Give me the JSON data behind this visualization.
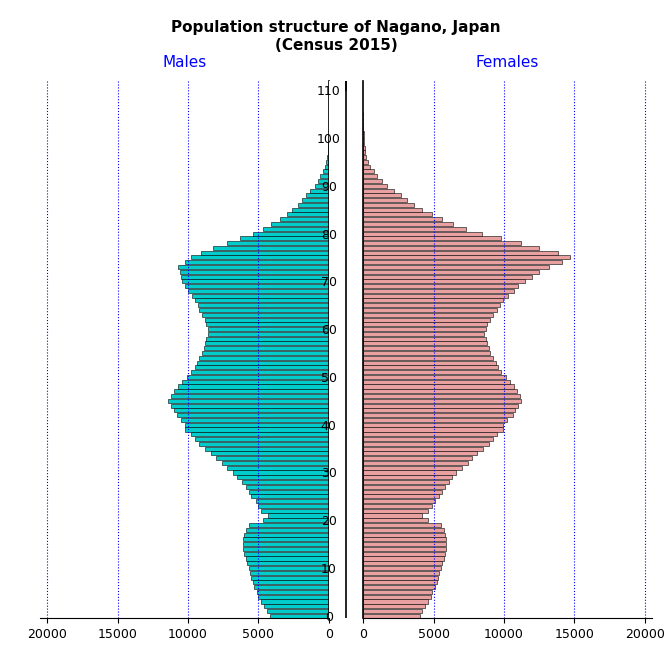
{
  "title": "Population structure of Nagano, Japan\n(Census 2015)",
  "male_label": "Males",
  "female_label": "Females",
  "male_color": "#00CCCC",
  "female_color": "#E8A0A0",
  "bar_edge_color": "black",
  "bar_linewidth": 0.4,
  "vline_color": "blue",
  "vline_style": "dotted",
  "vline_lw": 0.8,
  "x_ticks": [
    0,
    5000,
    10000,
    15000,
    20000
  ],
  "x_lim": 20500,
  "y_max": 112,
  "y_min": -0.5,
  "yticks": [
    0,
    10,
    20,
    30,
    40,
    50,
    60,
    70,
    80,
    90,
    100,
    110
  ],
  "ages": [
    0,
    1,
    2,
    3,
    4,
    5,
    6,
    7,
    8,
    9,
    10,
    11,
    12,
    13,
    14,
    15,
    16,
    17,
    18,
    19,
    20,
    21,
    22,
    23,
    24,
    25,
    26,
    27,
    28,
    29,
    30,
    31,
    32,
    33,
    34,
    35,
    36,
    37,
    38,
    39,
    40,
    41,
    42,
    43,
    44,
    45,
    46,
    47,
    48,
    49,
    50,
    51,
    52,
    53,
    54,
    55,
    56,
    57,
    58,
    59,
    60,
    61,
    62,
    63,
    64,
    65,
    66,
    67,
    68,
    69,
    70,
    71,
    72,
    73,
    74,
    75,
    76,
    77,
    78,
    79,
    80,
    81,
    82,
    83,
    84,
    85,
    86,
    87,
    88,
    89,
    90,
    91,
    92,
    93,
    94,
    95,
    96,
    97,
    98,
    99,
    100,
    101,
    102,
    103,
    104,
    105
  ],
  "males": [
    4200,
    4400,
    4600,
    4800,
    5000,
    5100,
    5300,
    5400,
    5500,
    5600,
    5700,
    5800,
    5900,
    6000,
    6100,
    6100,
    6100,
    6000,
    5900,
    5700,
    4700,
    4300,
    4800,
    5000,
    5200,
    5500,
    5700,
    5900,
    6200,
    6500,
    6800,
    7200,
    7600,
    8000,
    8400,
    8800,
    9200,
    9500,
    9800,
    10200,
    10200,
    10500,
    10800,
    11000,
    11200,
    11400,
    11200,
    11000,
    10700,
    10400,
    10100,
    9800,
    9500,
    9400,
    9200,
    9000,
    8900,
    8800,
    8700,
    8600,
    8600,
    8700,
    8800,
    9000,
    9200,
    9300,
    9500,
    9700,
    10000,
    10200,
    10400,
    10500,
    10600,
    10700,
    10200,
    9800,
    9100,
    8200,
    7200,
    6300,
    5400,
    4700,
    4100,
    3500,
    3000,
    2600,
    2200,
    1900,
    1600,
    1300,
    1000,
    800,
    600,
    440,
    300,
    190,
    120,
    70,
    40,
    20,
    10,
    6,
    3,
    2,
    1,
    0
  ],
  "females": [
    4000,
    4200,
    4400,
    4600,
    4800,
    4900,
    5100,
    5200,
    5300,
    5400,
    5500,
    5600,
    5700,
    5800,
    5900,
    5900,
    5900,
    5800,
    5700,
    5500,
    4600,
    4200,
    4600,
    4900,
    5100,
    5400,
    5600,
    5800,
    6100,
    6300,
    6600,
    7000,
    7400,
    7700,
    8100,
    8500,
    8900,
    9200,
    9500,
    9900,
    9900,
    10200,
    10600,
    10800,
    11000,
    11200,
    11100,
    10900,
    10700,
    10400,
    10100,
    9800,
    9600,
    9400,
    9200,
    9000,
    8900,
    8800,
    8700,
    8600,
    8700,
    8800,
    9000,
    9200,
    9500,
    9700,
    9900,
    10300,
    10700,
    11000,
    11500,
    12000,
    12500,
    13200,
    14100,
    14700,
    13800,
    12500,
    11200,
    9800,
    8400,
    7300,
    6400,
    5600,
    4900,
    4200,
    3600,
    3100,
    2700,
    2200,
    1700,
    1300,
    1000,
    720,
    500,
    320,
    200,
    130,
    80,
    45,
    25,
    14,
    8,
    4,
    2,
    1
  ]
}
